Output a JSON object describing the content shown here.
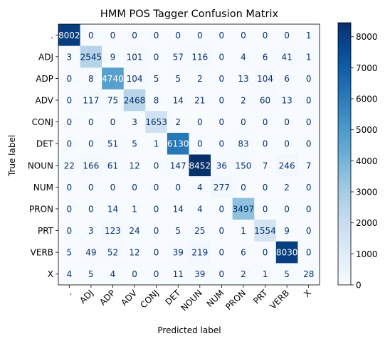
{
  "chart_data": {
    "type": "heatmap",
    "title": "HMM POS Tagger Confusion Matrix",
    "xlabel": "Predicted label",
    "ylabel": "True label",
    "labels": [
      ".",
      "ADJ",
      "ADP",
      "ADV",
      "CONJ",
      "DET",
      "NOUN",
      "NUM",
      "PRON",
      "PRT",
      "VERB",
      "X"
    ],
    "matrix": [
      [
        8002,
        0,
        0,
        0,
        0,
        0,
        0,
        0,
        0,
        0,
        0,
        1
      ],
      [
        3,
        2545,
        9,
        101,
        0,
        57,
        116,
        0,
        4,
        6,
        41,
        1
      ],
      [
        0,
        8,
        4740,
        104,
        5,
        5,
        2,
        0,
        13,
        104,
        6,
        0
      ],
      [
        0,
        117,
        75,
        2468,
        8,
        14,
        21,
        0,
        2,
        60,
        13,
        0
      ],
      [
        0,
        0,
        0,
        3,
        1653,
        2,
        0,
        0,
        0,
        0,
        0,
        0
      ],
      [
        0,
        0,
        51,
        5,
        1,
        6130,
        0,
        0,
        83,
        0,
        0,
        0
      ],
      [
        22,
        166,
        61,
        12,
        0,
        147,
        8452,
        36,
        150,
        7,
        246,
        7
      ],
      [
        0,
        0,
        0,
        0,
        0,
        0,
        4,
        277,
        0,
        0,
        2,
        0
      ],
      [
        0,
        0,
        14,
        1,
        0,
        14,
        4,
        0,
        3497,
        0,
        0,
        0
      ],
      [
        0,
        3,
        123,
        24,
        0,
        5,
        25,
        0,
        1,
        1554,
        9,
        0
      ],
      [
        5,
        49,
        52,
        12,
        0,
        39,
        219,
        0,
        6,
        0,
        8030,
        0
      ],
      [
        4,
        5,
        4,
        0,
        0,
        11,
        39,
        0,
        2,
        1,
        5,
        28
      ]
    ],
    "colormap": "Blues",
    "vmin": 0,
    "vmax": 8452,
    "colorbar_ticks": [
      0,
      1000,
      2000,
      3000,
      4000,
      5000,
      6000,
      7000,
      8000
    ],
    "grid": false
  }
}
